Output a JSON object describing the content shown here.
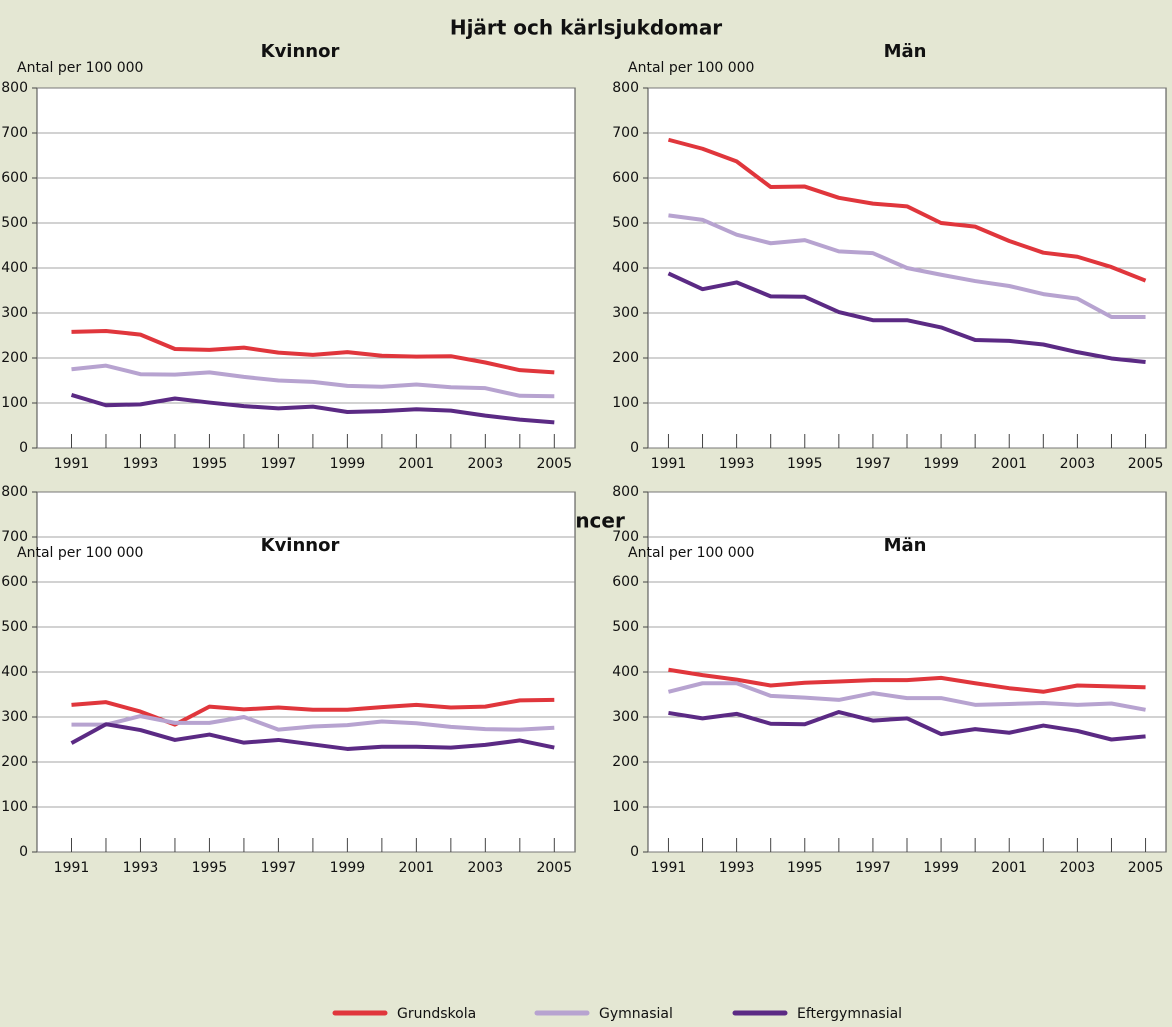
{
  "sections": [
    {
      "title": "Hjärt och kärlsjukdomar"
    },
    {
      "title": "Cancer"
    }
  ],
  "chart_data": [
    {
      "type": "line",
      "title": "Kvinnor",
      "ylabel": "Antal per 100 000",
      "x": [
        1991,
        1992,
        1993,
        1994,
        1995,
        1996,
        1997,
        1998,
        1999,
        2000,
        2001,
        2002,
        2003,
        2004,
        2005
      ],
      "xlim": [
        1990,
        2005.6
      ],
      "xticks": [
        1991,
        1993,
        1995,
        1997,
        1999,
        2001,
        2003,
        2005
      ],
      "ylim": [
        0,
        800
      ],
      "yticks": [
        0,
        100,
        200,
        300,
        400,
        500,
        600,
        700,
        800
      ],
      "grid": true,
      "series": [
        {
          "name": "Grundskola",
          "color": "#e0363c",
          "values": [
            258,
            260,
            252,
            220,
            218,
            223,
            212,
            207,
            213,
            205,
            203,
            204,
            190,
            173,
            168
          ]
        },
        {
          "name": "Gymnasial",
          "color": "#b7a3d0",
          "values": [
            175,
            183,
            164,
            163,
            168,
            158,
            150,
            147,
            138,
            136,
            141,
            135,
            133,
            116,
            115
          ]
        },
        {
          "name": "Eftergymnasial",
          "color": "#5b2a84",
          "values": [
            118,
            95,
            97,
            110,
            101,
            93,
            88,
            92,
            80,
            82,
            86,
            83,
            72,
            63,
            57
          ]
        }
      ]
    },
    {
      "type": "line",
      "title": "Män",
      "ylabel": "Antal per 100 000",
      "x": [
        1991,
        1992,
        1993,
        1994,
        1995,
        1996,
        1997,
        1998,
        1999,
        2000,
        2001,
        2002,
        2003,
        2004,
        2005
      ],
      "xlim": [
        1990.4,
        2005.6
      ],
      "xticks": [
        1991,
        1993,
        1995,
        1997,
        1999,
        2001,
        2003,
        2005
      ],
      "ylim": [
        0,
        800
      ],
      "yticks": [
        0,
        100,
        200,
        300,
        400,
        500,
        600,
        700,
        800
      ],
      "grid": true,
      "series": [
        {
          "name": "Grundskola",
          "color": "#e0363c",
          "values": [
            685,
            665,
            637,
            580,
            581,
            556,
            543,
            537,
            500,
            492,
            460,
            434,
            425,
            402,
            372
          ]
        },
        {
          "name": "Gymnasial",
          "color": "#b7a3d0",
          "values": [
            517,
            507,
            474,
            455,
            462,
            437,
            433,
            400,
            385,
            371,
            360,
            342,
            332,
            291,
            291
          ]
        },
        {
          "name": "Eftergymnasial",
          "color": "#5b2a84",
          "values": [
            388,
            353,
            368,
            337,
            336,
            302,
            284,
            284,
            268,
            240,
            238,
            230,
            213,
            199,
            191
          ]
        }
      ]
    },
    {
      "type": "line",
      "title": "Kvinnor",
      "ylabel": "Antal per 100 000",
      "x": [
        1991,
        1992,
        1993,
        1994,
        1995,
        1996,
        1997,
        1998,
        1999,
        2000,
        2001,
        2002,
        2003,
        2004,
        2005
      ],
      "xlim": [
        1990,
        2005.6
      ],
      "xticks": [
        1991,
        1993,
        1995,
        1997,
        1999,
        2001,
        2003,
        2005
      ],
      "ylim": [
        0,
        800
      ],
      "yticks": [
        0,
        100,
        200,
        300,
        400,
        500,
        600,
        700,
        800
      ],
      "grid": true,
      "series": [
        {
          "name": "Grundskola",
          "color": "#e0363c",
          "values": [
            327,
            333,
            312,
            283,
            323,
            317,
            321,
            316,
            316,
            322,
            327,
            321,
            323,
            337,
            338
          ]
        },
        {
          "name": "Gymnasial",
          "color": "#b7a3d0",
          "values": [
            283,
            283,
            302,
            287,
            287,
            300,
            272,
            279,
            282,
            290,
            286,
            278,
            273,
            272,
            276
          ]
        },
        {
          "name": "Eftergymnasial",
          "color": "#5b2a84",
          "values": [
            242,
            284,
            271,
            249,
            261,
            243,
            249,
            239,
            229,
            234,
            234,
            232,
            238,
            248,
            232
          ]
        }
      ]
    },
    {
      "type": "line",
      "title": "Män",
      "ylabel": "Antal per 100 000",
      "x": [
        1991,
        1992,
        1993,
        1994,
        1995,
        1996,
        1997,
        1998,
        1999,
        2000,
        2001,
        2002,
        2003,
        2004,
        2005
      ],
      "xlim": [
        1990.4,
        2005.6
      ],
      "xticks": [
        1991,
        1993,
        1995,
        1997,
        1999,
        2001,
        2003,
        2005
      ],
      "ylim": [
        0,
        800
      ],
      "yticks": [
        0,
        100,
        200,
        300,
        400,
        500,
        600,
        700,
        800
      ],
      "grid": true,
      "series": [
        {
          "name": "Grundskola",
          "color": "#e0363c",
          "values": [
            405,
            393,
            383,
            370,
            376,
            379,
            382,
            382,
            387,
            375,
            364,
            356,
            370,
            368,
            366
          ]
        },
        {
          "name": "Gymnasial",
          "color": "#b7a3d0",
          "values": [
            356,
            375,
            375,
            347,
            343,
            338,
            353,
            342,
            342,
            327,
            329,
            331,
            327,
            330,
            316
          ]
        },
        {
          "name": "Eftergymnasial",
          "color": "#5b2a84",
          "values": [
            309,
            297,
            307,
            285,
            284,
            311,
            292,
            297,
            262,
            273,
            265,
            281,
            269,
            250,
            257
          ]
        }
      ]
    }
  ]
}
